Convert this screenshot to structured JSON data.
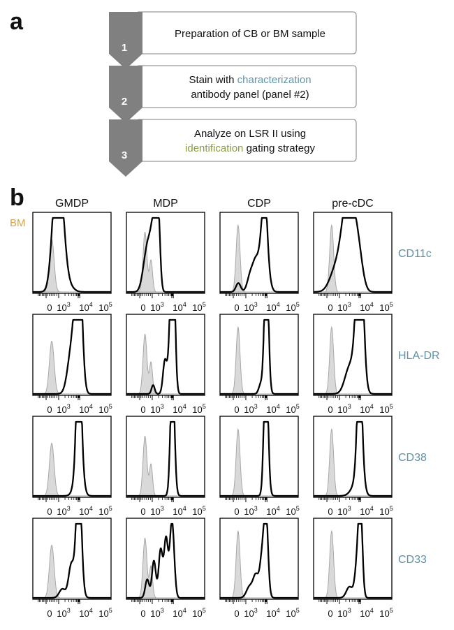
{
  "panel_a": {
    "letter": "a",
    "steps": [
      {
        "number": "1",
        "line1": [
          {
            "text": "Preparation of CB or BM sample",
            "style": "normal"
          }
        ],
        "line2": []
      },
      {
        "number": "2",
        "line1": [
          {
            "text": "Stain with ",
            "style": "normal"
          },
          {
            "text": "characterization",
            "style": "blue"
          }
        ],
        "line2": [
          {
            "text": "antibody panel (panel #2)",
            "style": "normal"
          }
        ]
      },
      {
        "number": "3",
        "line1": [
          {
            "text": "Analyze on LSR II using",
            "style": "normal"
          }
        ],
        "line2": [
          {
            "text": "identification",
            "style": "green"
          },
          {
            "text": " gating strategy",
            "style": "normal"
          }
        ]
      }
    ]
  },
  "panel_b": {
    "letter": "b",
    "sample_label": "BM",
    "columns": [
      "GMDP",
      "MDP",
      "CDP",
      "pre-cDC"
    ],
    "rows": [
      "CD11c",
      "HLA-DR",
      "CD38",
      "CD33"
    ],
    "axis_tick_labels": [
      {
        "base": "0",
        "exp": ""
      },
      {
        "base": "10",
        "exp": "3"
      },
      {
        "base": "10",
        "exp": "4"
      },
      {
        "base": "10",
        "exp": "5"
      }
    ],
    "colors": {
      "stained": "#000000",
      "control_fill": "#d9d9d9",
      "control_line": "#a8a8a8",
      "marker_text": "#5f91a7",
      "sample_text": "#d4a24d"
    }
  },
  "chart_data": {
    "type": "histogram-grid",
    "x_scale": "biexponential",
    "x_ticks": [
      "0",
      "10^3",
      "10^4",
      "10^5"
    ],
    "series": [
      "isotype control (gray fill)",
      "stained sample (black line)"
    ],
    "control_peak_approx": {
      "GMDP": 500,
      "MDP": 500,
      "CDP": 400,
      "pre-cDC": 400
    },
    "stained_main_peak_approx": {
      "CD11c": {
        "GMDP": 900,
        "MDP": 1500,
        "CDP": 8000,
        "pre-cDC": 3000
      },
      "HLA-DR": {
        "GMDP": 10000,
        "MDP": 20000,
        "CDP": 30000,
        "pre-cDC": 15000
      },
      "CD38": {
        "GMDP": 40000,
        "MDP": 40000,
        "CDP": 50000,
        "pre-cDC": 40000
      },
      "CD33": {
        "GMDP": 10000,
        "MDP": 8000,
        "CDP": 8000,
        "pre-cDC": 10000
      }
    }
  }
}
